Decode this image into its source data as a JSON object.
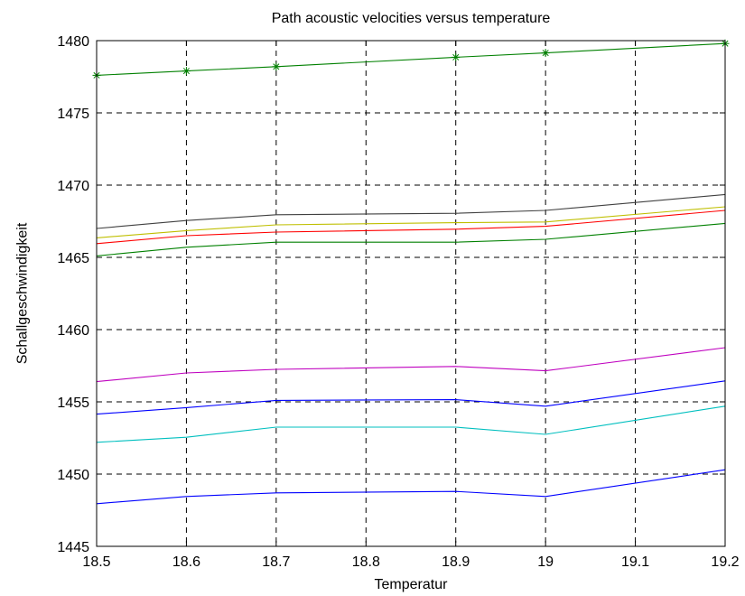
{
  "chart_data": {
    "type": "line",
    "title": "Path acoustic velocities versus temperature",
    "xlabel": "Temperatur",
    "ylabel": "Schallgeschwindigkeit",
    "xlim": [
      18.5,
      19.2
    ],
    "ylim": [
      1445,
      1480
    ],
    "x_ticks": [
      "18.5",
      "18.6",
      "18.7",
      "18.8",
      "18.9",
      "19",
      "19.1",
      "19.2"
    ],
    "y_ticks": [
      "1445",
      "1450",
      "1455",
      "1460",
      "1465",
      "1470",
      "1475",
      "1480"
    ],
    "x": [
      18.5,
      18.6,
      18.7,
      18.9,
      19.0,
      19.2
    ],
    "grid": true,
    "grid_style": "dashed",
    "series": [
      {
        "color": "#008000",
        "marker": "asterisk",
        "values": [
          1477.6,
          1477.9,
          1478.2,
          1478.85,
          1479.15,
          1479.8
        ]
      },
      {
        "color": "#404040",
        "marker": "none",
        "values": [
          1467.0,
          1467.55,
          1467.95,
          1468.05,
          1468.25,
          1469.35
        ]
      },
      {
        "color": "#bfbf00",
        "marker": "none",
        "values": [
          1466.35,
          1466.85,
          1467.25,
          1467.4,
          1467.45,
          1468.5
        ]
      },
      {
        "color": "#ff0000",
        "marker": "none",
        "values": [
          1465.95,
          1466.5,
          1466.75,
          1466.95,
          1467.15,
          1468.25
        ]
      },
      {
        "color": "#008000",
        "marker": "none",
        "values": [
          1465.1,
          1465.7,
          1466.05,
          1466.05,
          1466.25,
          1467.35
        ]
      },
      {
        "color": "#bf00bf",
        "marker": "none",
        "values": [
          1456.4,
          1457.0,
          1457.25,
          1457.45,
          1457.15,
          1458.75
        ]
      },
      {
        "color": "#0000ff",
        "marker": "none",
        "values": [
          1454.15,
          1454.6,
          1455.1,
          1455.15,
          1454.7,
          1456.45
        ]
      },
      {
        "color": "#00bfbf",
        "marker": "none",
        "values": [
          1452.2,
          1452.55,
          1453.25,
          1453.25,
          1452.75,
          1454.7
        ]
      },
      {
        "color": "#0000ff",
        "marker": "none",
        "values": [
          1447.95,
          1448.45,
          1448.7,
          1448.8,
          1448.45,
          1450.3
        ]
      }
    ]
  }
}
